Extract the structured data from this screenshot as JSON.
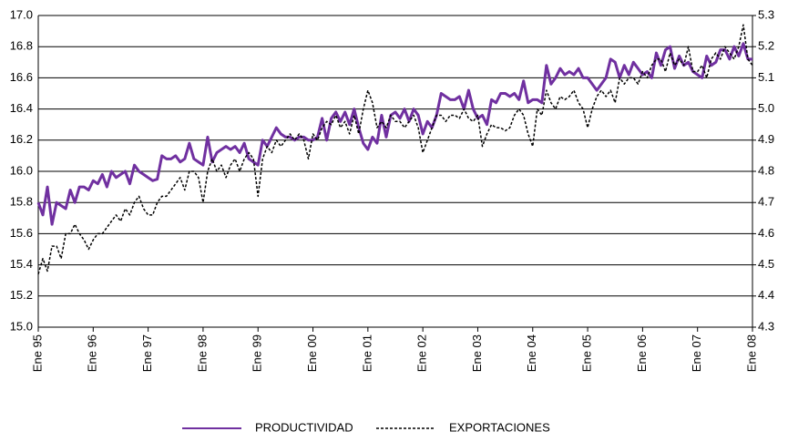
{
  "chart_data": {
    "type": "line",
    "categories": [
      "Ene 95",
      null,
      null,
      null,
      null,
      null,
      null,
      null,
      null,
      null,
      null,
      null,
      "Ene 96",
      null,
      null,
      null,
      null,
      null,
      null,
      null,
      null,
      null,
      null,
      null,
      "Ene 97",
      null,
      null,
      null,
      null,
      null,
      null,
      null,
      null,
      null,
      null,
      null,
      "Ene 98",
      null,
      null,
      null,
      null,
      null,
      null,
      null,
      null,
      null,
      null,
      null,
      "Ene 99",
      null,
      null,
      null,
      null,
      null,
      null,
      null,
      null,
      null,
      null,
      null,
      "Ene 00",
      null,
      null,
      null,
      null,
      null,
      null,
      null,
      null,
      null,
      null,
      null,
      "Ene 01",
      null,
      null,
      null,
      null,
      null,
      null,
      null,
      null,
      null,
      null,
      null,
      "Ene 02",
      null,
      null,
      null,
      null,
      null,
      null,
      null,
      null,
      null,
      null,
      null,
      "Ene 03",
      null,
      null,
      null,
      null,
      null,
      null,
      null,
      null,
      null,
      null,
      null,
      "Ene 04",
      null,
      null,
      null,
      null,
      null,
      null,
      null,
      null,
      null,
      null,
      null,
      "Ene 05",
      null,
      null,
      null,
      null,
      null,
      null,
      null,
      null,
      null,
      null,
      null,
      "Ene 06",
      null,
      null,
      null,
      null,
      null,
      null,
      null,
      null,
      null,
      null,
      null,
      "Ene 07",
      null,
      null,
      null,
      null,
      null,
      null,
      null,
      null,
      null,
      null,
      null,
      "Ene 08"
    ],
    "series": [
      {
        "name": "PRODUCTIVIDAD",
        "color": "#7030a0",
        "line_style": "solid",
        "axis": "y",
        "values": [
          15.8,
          15.72,
          15.9,
          15.66,
          15.8,
          15.78,
          15.76,
          15.88,
          15.8,
          15.9,
          15.9,
          15.88,
          15.94,
          15.92,
          15.98,
          15.9,
          16.0,
          15.96,
          15.98,
          16.0,
          15.92,
          16.04,
          16.0,
          15.98,
          15.96,
          15.94,
          15.95,
          16.1,
          16.08,
          16.08,
          16.1,
          16.06,
          16.08,
          16.18,
          16.08,
          16.06,
          16.04,
          16.22,
          16.06,
          16.12,
          16.14,
          16.16,
          16.14,
          16.16,
          16.12,
          16.18,
          16.08,
          16.06,
          16.04,
          16.2,
          16.16,
          16.22,
          16.28,
          16.24,
          16.22,
          16.22,
          16.2,
          16.22,
          16.22,
          16.2,
          16.2,
          16.22,
          16.34,
          16.2,
          16.34,
          16.38,
          16.32,
          16.38,
          16.3,
          16.4,
          16.28,
          16.18,
          16.14,
          16.22,
          16.18,
          16.36,
          16.22,
          16.36,
          16.38,
          16.34,
          16.4,
          16.32,
          16.4,
          16.36,
          16.24,
          16.32,
          16.28,
          16.36,
          16.5,
          16.48,
          16.46,
          16.46,
          16.48,
          16.4,
          16.52,
          16.4,
          16.34,
          16.36,
          16.3,
          16.46,
          16.44,
          16.5,
          16.5,
          16.48,
          16.5,
          16.46,
          16.58,
          16.44,
          16.46,
          16.46,
          16.44,
          16.68,
          16.56,
          16.6,
          16.66,
          16.62,
          16.64,
          16.62,
          16.66,
          16.6,
          16.6,
          16.56,
          16.52,
          16.56,
          16.6,
          16.72,
          16.7,
          16.6,
          16.68,
          16.62,
          16.7,
          16.66,
          16.62,
          16.64,
          16.6,
          16.76,
          16.68,
          16.78,
          16.8,
          16.66,
          16.74,
          16.68,
          16.7,
          16.64,
          16.62,
          16.6,
          16.74,
          16.68,
          16.7,
          16.78,
          16.78,
          16.72,
          16.8,
          16.74,
          16.82,
          16.72,
          16.72
        ]
      },
      {
        "name": "EXPORTACIONES",
        "color": "#000000",
        "line_style": "dashed",
        "axis": "y2",
        "values": [
          4.47,
          4.52,
          4.48,
          4.56,
          4.56,
          4.52,
          4.6,
          4.6,
          4.63,
          4.6,
          4.58,
          4.55,
          4.58,
          4.6,
          4.6,
          4.62,
          4.64,
          4.66,
          4.64,
          4.68,
          4.66,
          4.7,
          4.72,
          4.68,
          4.66,
          4.66,
          4.7,
          4.72,
          4.72,
          4.74,
          4.76,
          4.78,
          4.74,
          4.8,
          4.8,
          4.78,
          4.7,
          4.8,
          4.84,
          4.8,
          4.82,
          4.78,
          4.82,
          4.84,
          4.8,
          4.84,
          4.86,
          4.84,
          4.72,
          4.84,
          4.88,
          4.86,
          4.9,
          4.88,
          4.9,
          4.92,
          4.9,
          4.92,
          4.9,
          4.84,
          4.92,
          4.9,
          4.94,
          4.96,
          4.95,
          4.98,
          4.94,
          4.96,
          4.92,
          4.98,
          4.92,
          5.0,
          5.06,
          5.02,
          4.94,
          4.96,
          4.94,
          4.98,
          4.96,
          4.96,
          4.94,
          4.96,
          4.98,
          4.94,
          4.86,
          4.9,
          4.94,
          4.98,
          4.98,
          4.96,
          4.98,
          4.98,
          4.97,
          5.0,
          4.97,
          4.96,
          4.98,
          4.88,
          4.92,
          4.95,
          4.94,
          4.94,
          4.93,
          4.94,
          4.98,
          5.0,
          4.98,
          4.92,
          4.88,
          5.0,
          4.98,
          5.06,
          5.02,
          5.0,
          5.04,
          5.03,
          5.04,
          5.06,
          5.02,
          5.0,
          4.94,
          5.0,
          5.04,
          5.06,
          5.04,
          5.06,
          5.02,
          5.1,
          5.08,
          5.1,
          5.1,
          5.08,
          5.12,
          5.1,
          5.14,
          5.16,
          5.16,
          5.12,
          5.18,
          5.14,
          5.16,
          5.14,
          5.2,
          5.12,
          5.12,
          5.14,
          5.1,
          5.16,
          5.18,
          5.16,
          5.2,
          5.18,
          5.16,
          5.2,
          5.27,
          5.16,
          5.14
        ]
      }
    ],
    "ylim": [
      15.0,
      17.0
    ],
    "yticks": [
      {
        "value": 15.0,
        "label": "15.0"
      },
      {
        "value": 15.2,
        "label": "15.2"
      },
      {
        "value": 15.4,
        "label": "15.4"
      },
      {
        "value": 15.6,
        "label": "15.6"
      },
      {
        "value": 15.8,
        "label": "15.8"
      },
      {
        "value": 16.0,
        "label": "16.0"
      },
      {
        "value": 16.2,
        "label": "16.2"
      },
      {
        "value": 16.4,
        "label": "16.4"
      },
      {
        "value": 16.6,
        "label": "16.6"
      },
      {
        "value": 16.8,
        "label": "16.8"
      },
      {
        "value": 17.0,
        "label": "17.0"
      }
    ],
    "y2lim": [
      4.3,
      5.3
    ],
    "y2ticks": [
      4.3,
      4.4,
      4.5,
      4.6,
      4.7,
      4.8,
      4.9,
      {
        "value": 5.0,
        "label": "5.0"
      },
      5.1,
      5.2,
      5.3
    ],
    "grid": true,
    "legend": "bottom"
  }
}
